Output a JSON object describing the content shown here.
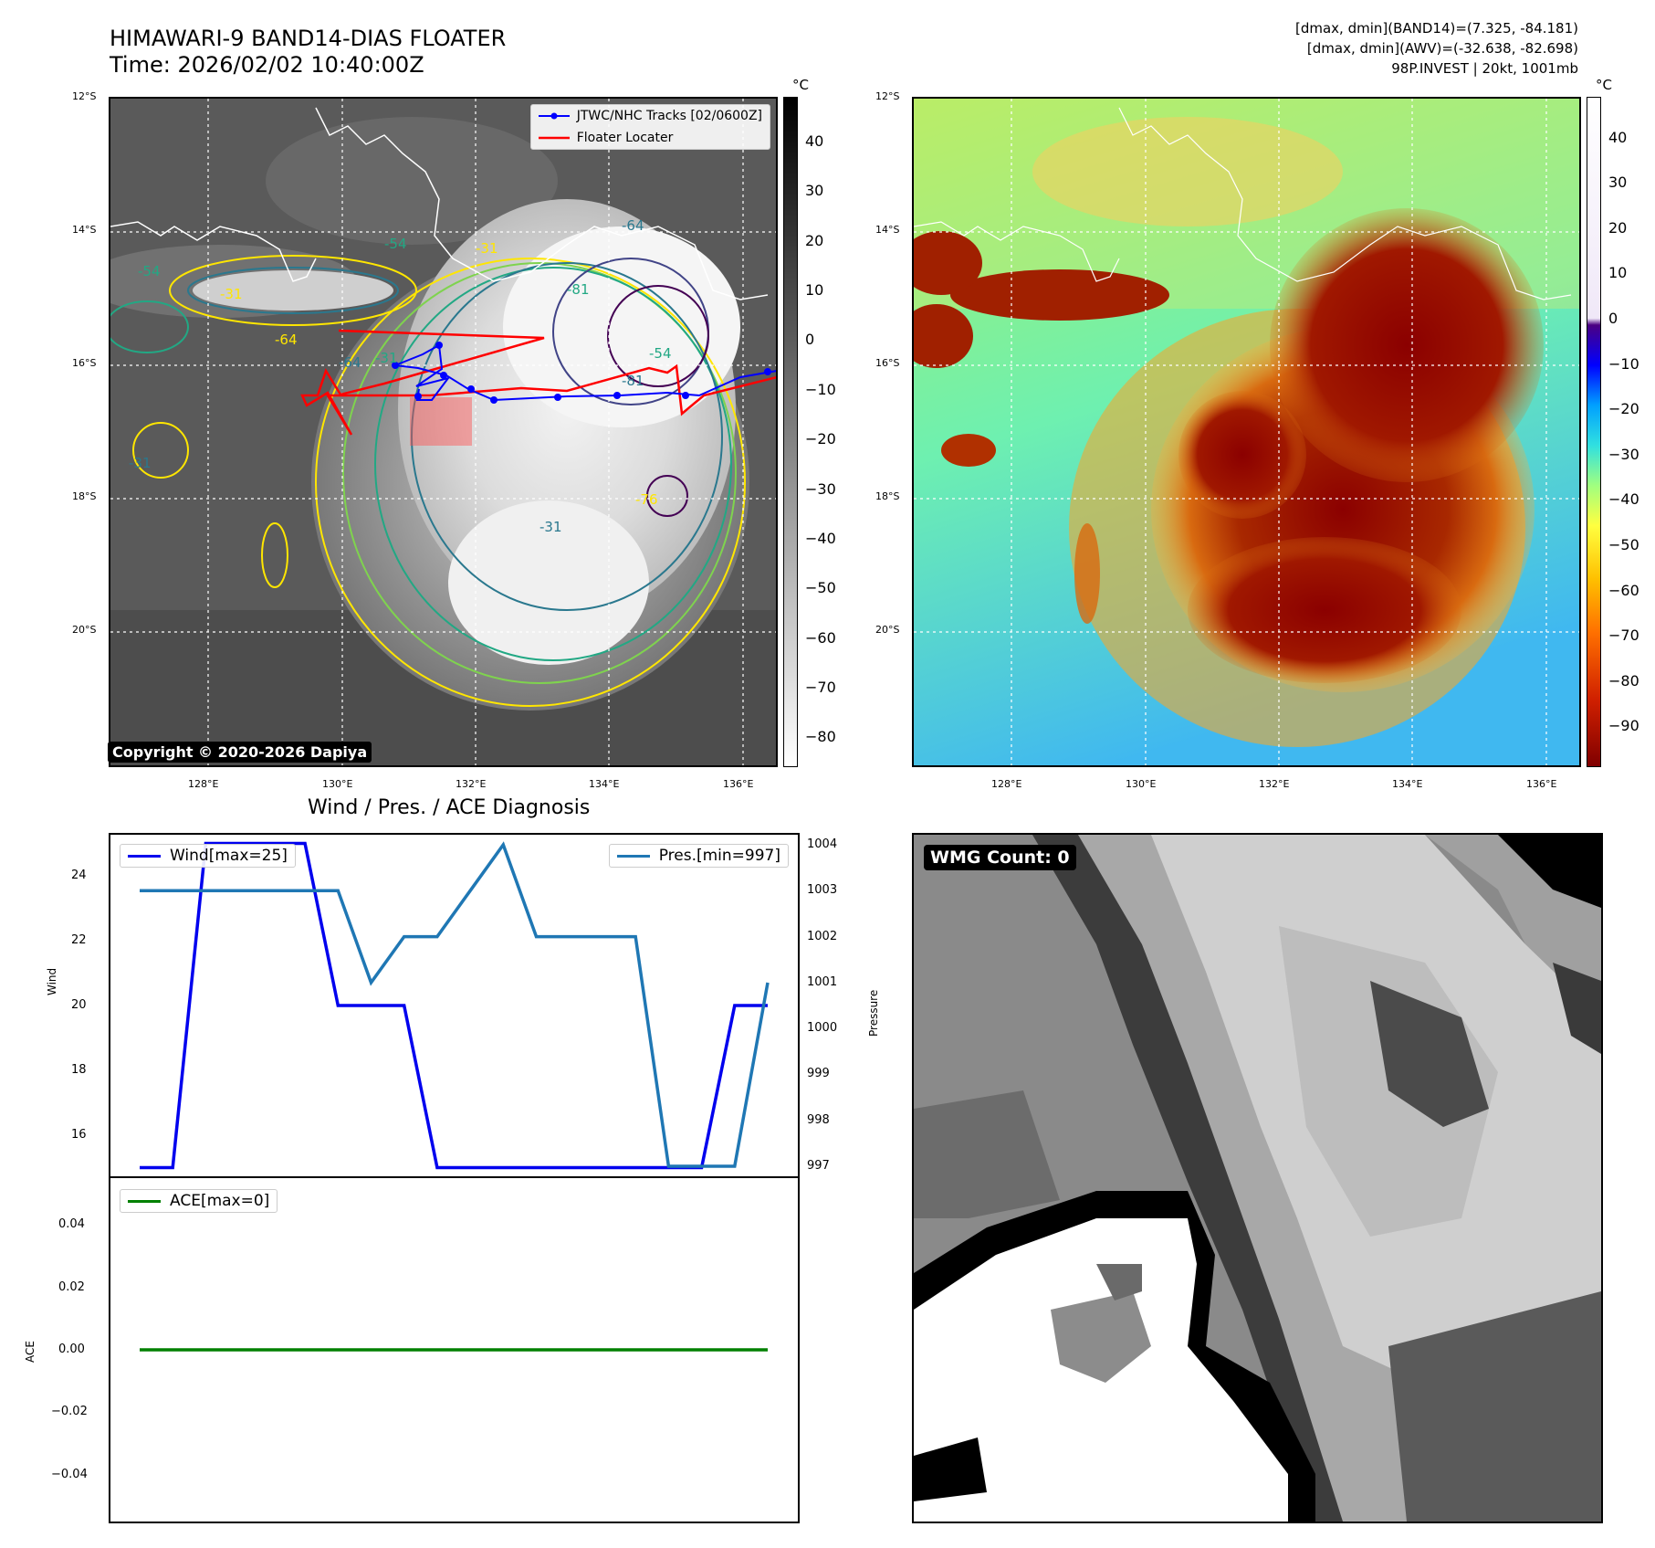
{
  "header": {
    "title_line1": "HIMAWARI-9 BAND14-DIAS FLOATER",
    "title_line2": "Time: 2026/02/02 10:40:00Z",
    "right_line1": "[dmax, dmin](BAND14)=(7.325, -84.181)",
    "right_line2": "[dmax, dmin](AWV)=(-32.638, -82.698)",
    "right_line3": "98P.INVEST | 20kt, 1001mb"
  },
  "maps": {
    "lat_ticks": [
      "12°S",
      "14°S",
      "16°S",
      "18°S",
      "20°S"
    ],
    "lon_ticks": [
      "128°E",
      "130°E",
      "132°E",
      "134°E",
      "136°E"
    ],
    "cbar_unit": "°C",
    "left_cbar_ticks": [
      "40",
      "30",
      "20",
      "10",
      "0",
      "−10",
      "−20",
      "−30",
      "−40",
      "−50",
      "−60",
      "−70",
      "−80"
    ],
    "right_cbar_ticks": [
      "40",
      "30",
      "20",
      "10",
      "0",
      "−10",
      "−20",
      "−30",
      "−40",
      "−50",
      "−60",
      "−70",
      "−80",
      "−90"
    ],
    "legend_track": "JTWC/NHC Tracks [02/0600Z]",
    "legend_floater": "Floater Locater",
    "copyright": "Copyright © 2020-2026 Dapiya",
    "contour_labels": [
      "-54",
      "-64",
      "-31",
      "-31",
      "-64",
      "-31",
      "-81",
      "-81",
      "-76",
      "-54",
      "-31",
      "-64",
      "-54",
      "-31"
    ],
    "colors": {
      "track": "#0000ff",
      "floater": "#ff0000"
    }
  },
  "diagnosis": {
    "title": "Wind / Pres. / ACE Diagnosis",
    "wind_label": "Wind",
    "pressure_label": "Pressure",
    "ace_label": "ACE",
    "wind_legend": "Wind[max=25]",
    "pres_legend": "Pres.[min=997]",
    "ace_legend": "ACE[max=0]",
    "wind_ticks": [
      "24",
      "22",
      "20",
      "18",
      "16"
    ],
    "pres_ticks": [
      "1004",
      "1003",
      "1002",
      "1001",
      "1000",
      "999",
      "998",
      "997"
    ],
    "ace_ticks": [
      "0.04",
      "0.02",
      "0.00",
      "−0.02",
      "−0.04"
    ],
    "colors": {
      "wind": "#0000ee",
      "pres": "#1f77b4",
      "ace": "#008000"
    }
  },
  "wmg": {
    "label": "WMG Count: 0"
  },
  "chart_data": [
    {
      "type": "line",
      "title": "Wind / Pres. / ACE Diagnosis",
      "ylabel": "Wind",
      "ylim": [
        14.9,
        25.1
      ],
      "series": [
        {
          "name": "Wind[max=25]",
          "values": [
            15,
            15,
            25,
            25,
            25,
            25,
            20,
            20,
            20,
            15,
            15,
            15,
            15,
            15,
            15,
            15,
            15,
            15,
            20,
            20
          ]
        }
      ]
    },
    {
      "type": "line",
      "ylabel": "Pressure",
      "ylim": [
        996.9,
        1004.1
      ],
      "series": [
        {
          "name": "Pres.[min=997]",
          "values": [
            1003,
            1003,
            1003,
            1003,
            1003,
            1003,
            1003,
            1001,
            1002,
            1002,
            1003,
            1004,
            1002,
            1002,
            1002,
            1002,
            997,
            997,
            997,
            1001
          ]
        }
      ]
    },
    {
      "type": "line",
      "ylabel": "ACE",
      "ylim": [
        -0.055,
        0.055
      ],
      "series": [
        {
          "name": "ACE[max=0]",
          "values": [
            0,
            0,
            0,
            0,
            0,
            0,
            0,
            0,
            0,
            0,
            0,
            0,
            0,
            0,
            0,
            0,
            0,
            0,
            0,
            0
          ]
        }
      ]
    }
  ]
}
